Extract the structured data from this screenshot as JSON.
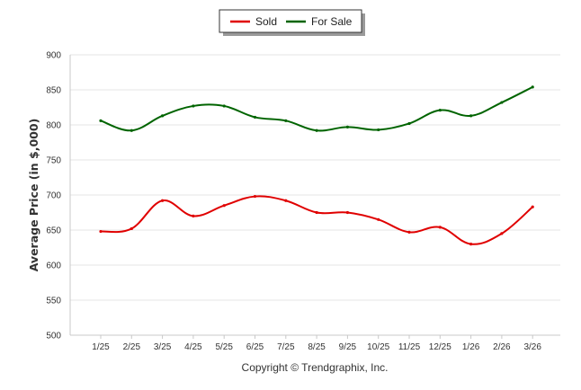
{
  "chart_data": {
    "type": "line",
    "title": "",
    "xlabel": "",
    "ylabel": "Average Price (in $,000)",
    "categories": [
      "1/25",
      "2/25",
      "3/25",
      "4/25",
      "5/25",
      "6/25",
      "7/25",
      "8/25",
      "9/25",
      "10/25",
      "11/25",
      "12/25",
      "1/26",
      "2/26",
      "3/26"
    ],
    "ylim": [
      500,
      900
    ],
    "yticks": [
      500,
      550,
      600,
      650,
      700,
      750,
      800,
      850,
      900
    ],
    "grid": true,
    "legend_position": "top-center",
    "series": [
      {
        "name": "Sold",
        "color": "#e00000",
        "values": [
          648,
          652,
          692,
          670,
          685,
          698,
          692,
          675,
          675,
          665,
          647,
          654,
          630,
          645,
          683
        ]
      },
      {
        "name": "For Sale",
        "color": "#006400",
        "values": [
          806,
          792,
          813,
          827,
          827,
          811,
          806,
          792,
          797,
          793,
          802,
          821,
          813,
          832,
          854
        ]
      }
    ],
    "caption": "Copyright © Trendgraphix, Inc."
  }
}
